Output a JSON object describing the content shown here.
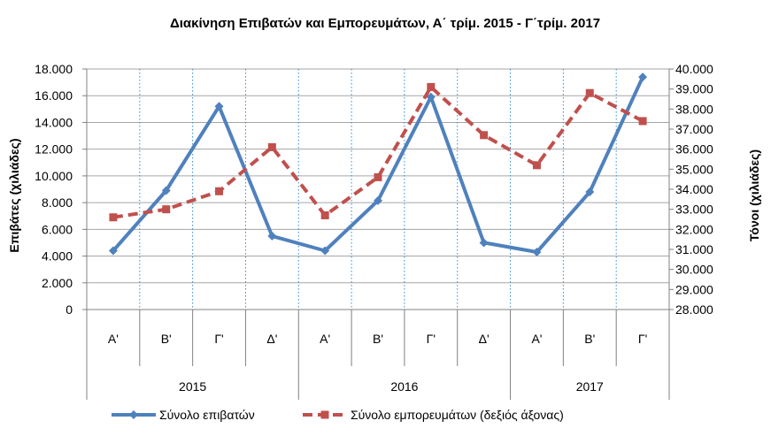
{
  "chart_data": {
    "type": "line",
    "title": "Διακίνηση Επιβατών και Εμπορευμάτων, Α΄ τρίμ. 2015 - Γ΄τρίμ. 2017",
    "ylabel": "Επιβάτες  (χιλιάδες)",
    "y2label": "Τόνοι  (χιλιάδες)",
    "categories": [
      "Α'",
      "Β'",
      "Γ'",
      "Δ'",
      "Α'",
      "Β'",
      "Γ'",
      "Δ'",
      "Α'",
      "Β'",
      "Γ'"
    ],
    "year_groups": [
      {
        "label": "2015",
        "count": 4
      },
      {
        "label": "2016",
        "count": 4
      },
      {
        "label": "2017",
        "count": 3
      }
    ],
    "ylim": [
      0,
      18000
    ],
    "y_ticks": [
      0,
      2000,
      4000,
      6000,
      8000,
      10000,
      12000,
      14000,
      16000,
      18000
    ],
    "y_tick_labels": [
      "0",
      "2.000",
      "4.000",
      "6.000",
      "8.000",
      "10.000",
      "12.000",
      "14.000",
      "16.000",
      "18.000"
    ],
    "y2lim": [
      28000,
      40000
    ],
    "y2_ticks": [
      28000,
      29000,
      30000,
      31000,
      32000,
      33000,
      34000,
      35000,
      36000,
      37000,
      38000,
      39000,
      40000
    ],
    "y2_tick_labels": [
      "28.000",
      "29.000",
      "30.000",
      "31.000",
      "32.000",
      "33.000",
      "34.000",
      "35.000",
      "36.000",
      "37.000",
      "38.000",
      "39.000",
      "40.000"
    ],
    "grid": true,
    "legend_position": "bottom",
    "series": [
      {
        "name": "Σύνολο επιβατών",
        "axis": "left",
        "color": "#4F81BD",
        "style": "solid",
        "marker": "diamond",
        "values": [
          4400,
          8900,
          15200,
          5500,
          4400,
          8150,
          15900,
          5000,
          4300,
          8800,
          17400
        ]
      },
      {
        "name": "Σύνολο εμπορευμάτων (δεξιός άξονας)",
        "axis": "right",
        "color": "#C0504D",
        "style": "dashed",
        "marker": "square",
        "values": [
          32600,
          33000,
          33900,
          36100,
          32700,
          34600,
          39100,
          36700,
          35200,
          38800,
          37400
        ]
      }
    ]
  }
}
